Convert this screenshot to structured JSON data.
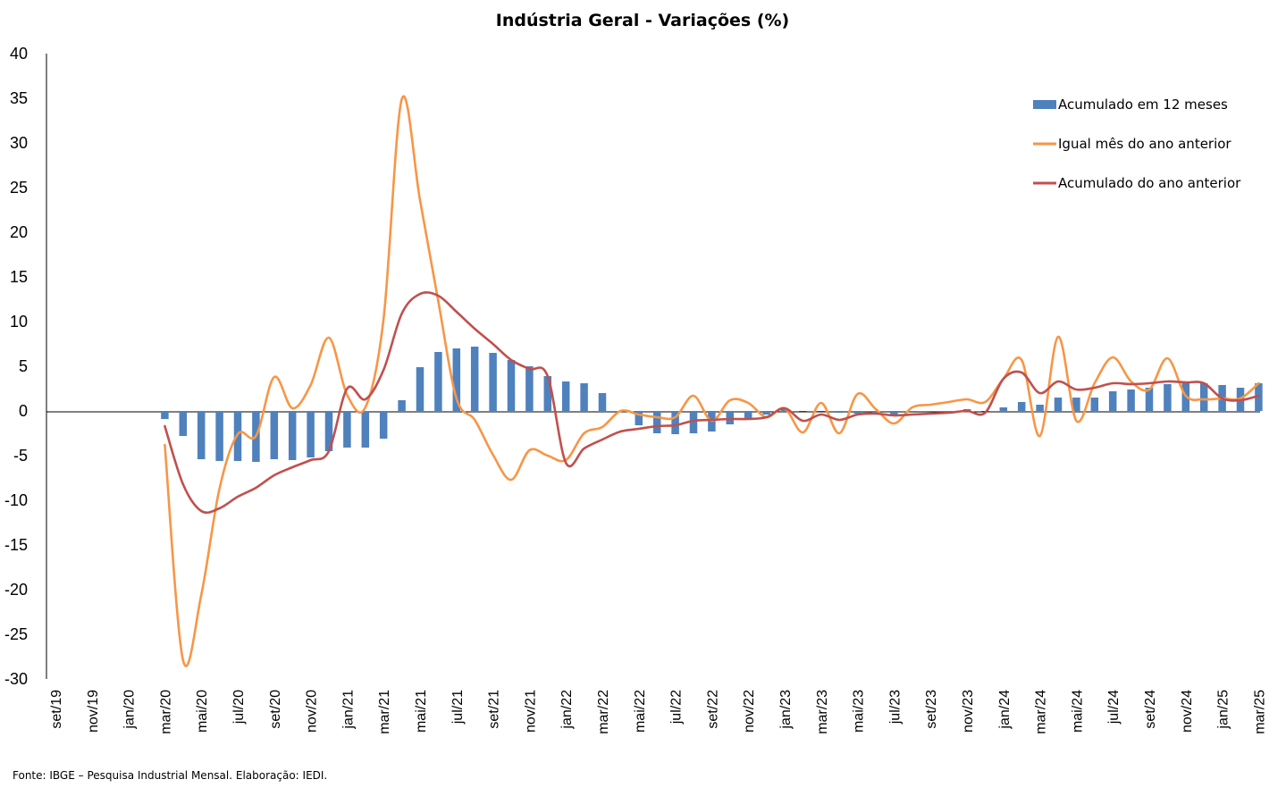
{
  "chart_data": {
    "type": "bar+line",
    "title": "Indústria Geral - Variações (%)",
    "xlabel": "",
    "ylabel": "",
    "ylim": [
      -30,
      40
    ],
    "yticks": [
      40,
      35,
      30,
      25,
      20,
      15,
      10,
      5,
      0,
      -5,
      -10,
      -15,
      -20,
      -25,
      -30
    ],
    "grid": false,
    "legend_position": "top-right",
    "categories": [
      "set/19",
      "out/19",
      "nov/19",
      "dez/19",
      "jan/20",
      "fev/20",
      "mar/20",
      "abr/20",
      "mai/20",
      "jun/20",
      "jul/20",
      "ago/20",
      "set/20",
      "out/20",
      "nov/20",
      "dez/20",
      "jan/21",
      "fev/21",
      "mar/21",
      "abr/21",
      "mai/21",
      "jun/21",
      "jul/21",
      "ago/21",
      "set/21",
      "out/21",
      "nov/21",
      "dez/21",
      "jan/22",
      "fev/22",
      "mar/22",
      "abr/22",
      "mai/22",
      "jun/22",
      "jul/22",
      "ago/22",
      "set/22",
      "out/22",
      "nov/22",
      "dez/22",
      "jan/23",
      "fev/23",
      "mar/23",
      "abr/23",
      "mai/23",
      "jun/23",
      "jul/23",
      "ago/23",
      "set/23",
      "out/23",
      "nov/23",
      "dez/23",
      "jan/24",
      "fev/24",
      "mar/24",
      "abr/24",
      "mai/24",
      "jun/24",
      "jul/24",
      "ago/24",
      "set/24",
      "out/24",
      "nov/24",
      "dez/24",
      "jan/25",
      "fev/25",
      "mar/25"
    ],
    "tick_labels": [
      "set/19",
      "nov/19",
      "jan/20",
      "mar/20",
      "mai/20",
      "jul/20",
      "set/20",
      "nov/20",
      "jan/21",
      "mar/21",
      "mai/21",
      "jul/21",
      "set/21",
      "nov/21",
      "jan/22",
      "mar/22",
      "mai/22",
      "jul/22",
      "set/22",
      "nov/22",
      "jan/23",
      "mar/23",
      "mai/23",
      "jul/23",
      "set/23",
      "nov/23",
      "jan/24",
      "mar/24",
      "mai/24",
      "jul/24",
      "set/24",
      "nov/24",
      "jan/25",
      "mar/25"
    ],
    "series": [
      {
        "name": "Acumulado em 12 meses",
        "kind": "bar",
        "color": "#4f81bd",
        "values": [
          null,
          null,
          null,
          null,
          null,
          null,
          -0.9,
          -2.8,
          -5.4,
          -5.6,
          -5.6,
          -5.7,
          -5.4,
          -5.5,
          -5.2,
          -4.5,
          -4.1,
          -4.1,
          -3.1,
          1.2,
          4.9,
          6.6,
          7.0,
          7.2,
          6.5,
          5.7,
          5.0,
          3.9,
          3.3,
          3.1,
          2.0,
          0.0,
          -1.6,
          -2.5,
          -2.6,
          -2.5,
          -2.3,
          -1.5,
          -1.0,
          -0.4,
          0.2,
          0.0,
          0.0,
          -0.2,
          -0.3,
          -0.2,
          -0.6,
          -0.1,
          -0.1,
          -0.1,
          0.2,
          0.0,
          0.4,
          1.0,
          0.7,
          1.5,
          1.5,
          1.5,
          2.2,
          2.4,
          2.6,
          3.0,
          3.2,
          3.1,
          2.9,
          2.6,
          3.1
        ]
      },
      {
        "name": "Igual mês do ano anterior",
        "kind": "line",
        "color": "#f79646",
        "values": [
          null,
          null,
          null,
          null,
          null,
          null,
          -3.8,
          -27.9,
          -20.6,
          -8.7,
          -2.6,
          -2.8,
          3.8,
          0.3,
          2.9,
          8.2,
          1.8,
          0.4,
          10.3,
          34.9,
          23.6,
          12.3,
          1.4,
          -1.0,
          -4.9,
          -7.7,
          -4.4,
          -5.0,
          -5.5,
          -2.5,
          -1.8,
          0.0,
          -0.4,
          -0.7,
          -0.7,
          1.7,
          -1.1,
          1.2,
          0.9,
          -0.7,
          0.3,
          -2.4,
          0.9,
          -2.5,
          1.9,
          0.2,
          -1.4,
          0.4,
          0.7,
          1.0,
          1.3,
          1.0,
          3.6,
          5.7,
          -2.8,
          8.3,
          -1.1,
          3.1,
          6.0,
          3.3,
          2.4,
          5.9,
          1.7,
          1.3,
          1.4,
          1.4,
          3.1
        ]
      },
      {
        "name": "Acumulado do ano anterior",
        "kind": "line",
        "color": "#c0504d",
        "values": [
          null,
          null,
          null,
          null,
          null,
          null,
          -1.7,
          -8.2,
          -11.2,
          -10.9,
          -9.6,
          -8.6,
          -7.2,
          -6.3,
          -5.5,
          -4.5,
          2.5,
          1.3,
          4.6,
          10.9,
          13.1,
          12.9,
          11.1,
          9.2,
          7.5,
          5.7,
          4.7,
          3.9,
          -5.8,
          -4.2,
          -3.2,
          -2.3,
          -2.0,
          -1.7,
          -1.6,
          -1.1,
          -1.0,
          -0.9,
          -0.9,
          -0.7,
          0.3,
          -1.1,
          -0.4,
          -1.0,
          -0.4,
          -0.3,
          -0.5,
          -0.4,
          -0.3,
          -0.2,
          0.0,
          -0.2,
          3.6,
          4.3,
          2.0,
          3.3,
          2.4,
          2.6,
          3.1,
          3.0,
          3.1,
          3.3,
          3.2,
          3.1,
          1.4,
          1.2,
          1.7
        ]
      }
    ]
  },
  "source": "Fonte: IBGE – Pesquisa Industrial Mensal. Elaboração: IEDI."
}
